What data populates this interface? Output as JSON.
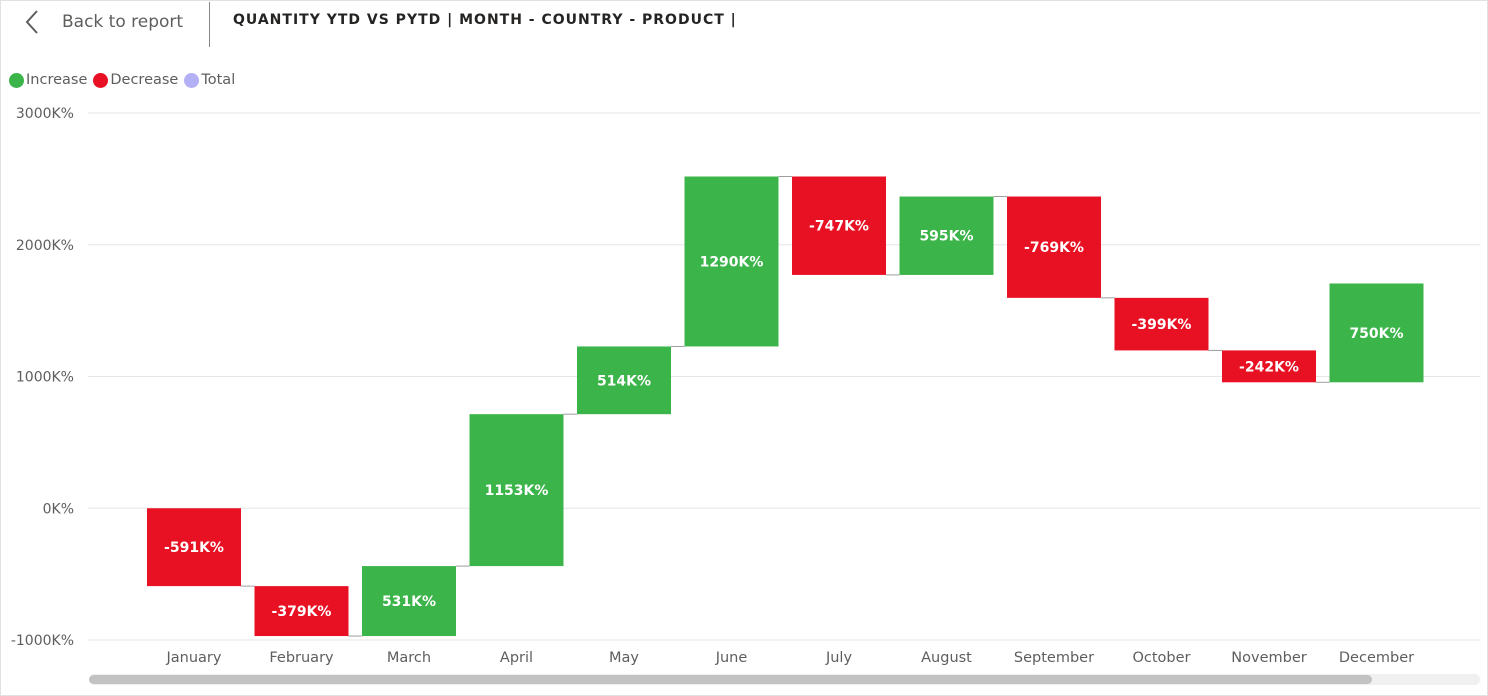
{
  "header": {
    "back_label": "Back to report",
    "title": "QUANTITY YTD VS PYTD | MONTH - COUNTRY - PRODUCT |"
  },
  "legend": [
    {
      "label": "Increase",
      "color": "#3bb44a"
    },
    {
      "label": "Decrease",
      "color": "#e81123"
    },
    {
      "label": "Total",
      "color": "#b4b0f5"
    }
  ],
  "chart_data": {
    "type": "waterfall",
    "title": "QUANTITY YTD VS PYTD | MONTH - COUNTRY - PRODUCT |",
    "ylim": [
      -1000,
      3000
    ],
    "yticks": [
      3000,
      2000,
      1000,
      0,
      -1000
    ],
    "ytick_labels": [
      "3000K%",
      "2000K%",
      "1000K%",
      "0K%",
      "-1000K%"
    ],
    "categories": [
      "January",
      "February",
      "March",
      "April",
      "May",
      "June",
      "July",
      "August",
      "September",
      "October",
      "November",
      "December"
    ],
    "values": [
      -591,
      -379,
      531,
      1153,
      514,
      1290,
      -747,
      595,
      -769,
      -399,
      -242,
      750
    ],
    "data_labels": [
      "-591K%",
      "-379K%",
      "531K%",
      "1153K%",
      "514K%",
      "1290K%",
      "-747K%",
      "595K%",
      "-769K%",
      "-399K%",
      "-242K%",
      "750K%"
    ],
    "increase_color": "#3bb44a",
    "decrease_color": "#e81123",
    "total_color": "#b4b0f5",
    "grid": true,
    "legend_position": "top-left"
  }
}
